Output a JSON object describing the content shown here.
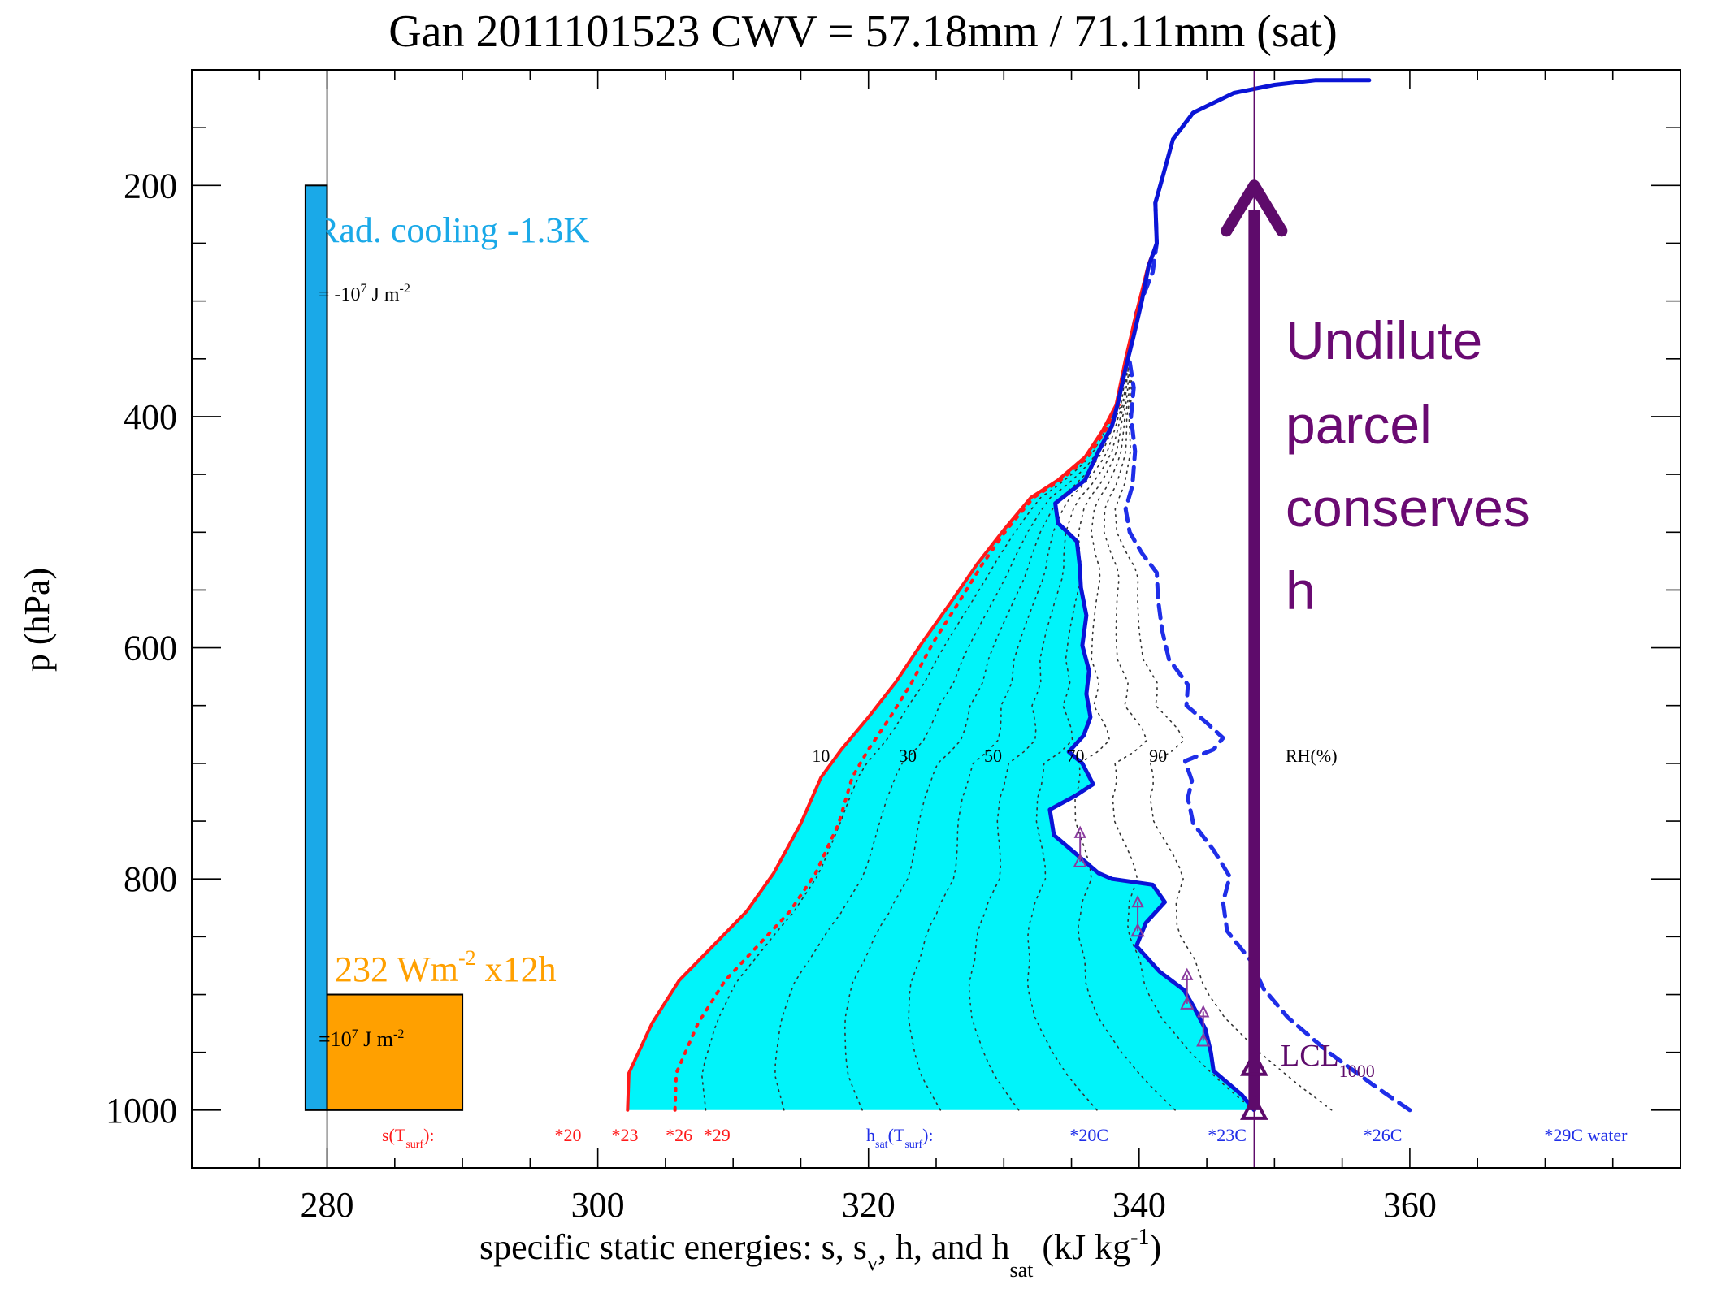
{
  "colors": {
    "s_profile": "#ff1a1a",
    "h_profile": "#0a14d6",
    "hsat_profile": "#1f2ee8",
    "shading": "#00f4fa",
    "rad_cooling": "#1aa9e8",
    "surface_flux": "#ffa000",
    "parcel": "#5e0b6b",
    "rh_lines": "#333333"
  },
  "chart_data": {
    "type": "line",
    "title": "Gan 2011101523  CWV = 57.18mm / 71.11mm (sat)",
    "xlabel": "specific static energies: s, s",
    "xlabel_sub1": "v",
    "xlabel_mid": ", h, and h",
    "xlabel_sub2": "sat",
    "xlabel_unit": " (kJ  kg",
    "xlabel_unit_sup": "-1",
    "xlabel_close": ")",
    "ylabel": "p (hPa)",
    "xlim": [
      270,
      380
    ],
    "ylim": [
      1050,
      100
    ],
    "y_inverted": true,
    "grid": false,
    "x_ticks": [
      280,
      300,
      320,
      340,
      360
    ],
    "y_ticks": [
      200,
      400,
      600,
      800,
      1000
    ],
    "series": [
      {
        "key": "s",
        "style": "solid",
        "points": [
          [
            302.2,
            1000
          ],
          [
            302.3,
            968
          ],
          [
            304,
            925
          ],
          [
            306,
            888
          ],
          [
            308.5,
            858
          ],
          [
            311,
            828
          ],
          [
            313,
            795
          ],
          [
            315,
            752
          ],
          [
            316.5,
            712
          ],
          [
            318,
            688
          ],
          [
            320,
            660
          ],
          [
            322,
            630
          ],
          [
            324,
            595
          ],
          [
            326,
            562
          ],
          [
            328,
            528
          ],
          [
            330,
            498
          ],
          [
            332,
            470
          ],
          [
            334,
            455
          ],
          [
            336,
            435
          ],
          [
            337.3,
            412
          ],
          [
            338.3,
            390
          ],
          [
            339,
            350
          ],
          [
            339.8,
            310
          ],
          [
            340.7,
            268
          ],
          [
            341.3,
            250
          ],
          [
            341.2,
            215
          ],
          [
            341.8,
            190
          ],
          [
            342.5,
            160
          ],
          [
            344,
            137
          ],
          [
            347,
            120
          ],
          [
            350,
            113
          ],
          [
            353,
            109
          ],
          [
            357,
            109
          ]
        ]
      },
      {
        "key": "s_v",
        "style": "dotted",
        "points": [
          [
            305.7,
            1000
          ],
          [
            305.8,
            968
          ],
          [
            307.4,
            925
          ],
          [
            309.4,
            888
          ],
          [
            311.8,
            858
          ],
          [
            314.2,
            828
          ],
          [
            316.1,
            795
          ],
          [
            317.8,
            752
          ],
          [
            318.8,
            712
          ],
          [
            320,
            688
          ],
          [
            321.6,
            660
          ],
          [
            323.2,
            630
          ],
          [
            324.8,
            595
          ],
          [
            326.6,
            562
          ],
          [
            328.4,
            528
          ],
          [
            330.2,
            498
          ],
          [
            332.2,
            470
          ],
          [
            334.2,
            455
          ],
          [
            336.2,
            435
          ],
          [
            337.5,
            412
          ],
          [
            338.5,
            390
          ]
        ]
      },
      {
        "key": "h",
        "style": "solid",
        "points": [
          [
            348.5,
            1000
          ],
          [
            347.6,
            987
          ],
          [
            345.5,
            966
          ],
          [
            345.3,
            950
          ],
          [
            344.9,
            930
          ],
          [
            344,
            910
          ],
          [
            343.3,
            896
          ],
          [
            341.5,
            880
          ],
          [
            339.8,
            858
          ],
          [
            340.5,
            838
          ],
          [
            341.9,
            820
          ],
          [
            341,
            805
          ],
          [
            338,
            800
          ],
          [
            337,
            795
          ],
          [
            335.5,
            780
          ],
          [
            333.7,
            762
          ],
          [
            333.4,
            740
          ],
          [
            335.3,
            728
          ],
          [
            336.6,
            718
          ],
          [
            335.8,
            700
          ],
          [
            334.8,
            690
          ],
          [
            335.9,
            676
          ],
          [
            336.4,
            660
          ],
          [
            336.1,
            640
          ],
          [
            336.3,
            620
          ],
          [
            335.8,
            598
          ],
          [
            336.1,
            572
          ],
          [
            335.7,
            548
          ],
          [
            335.6,
            528
          ],
          [
            335.4,
            508
          ],
          [
            334,
            492
          ],
          [
            333.8,
            475
          ],
          [
            336,
            455
          ],
          [
            337,
            430
          ],
          [
            338,
            408
          ],
          [
            338.5,
            385
          ],
          [
            339,
            358
          ],
          [
            339.6,
            330
          ],
          [
            340.2,
            300
          ],
          [
            340.7,
            270
          ],
          [
            341.3,
            250
          ],
          [
            341.2,
            215
          ],
          [
            341.8,
            190
          ],
          [
            342.5,
            160
          ],
          [
            344,
            137
          ],
          [
            347,
            120
          ],
          [
            350,
            113
          ],
          [
            353,
            109
          ],
          [
            357,
            109
          ]
        ]
      },
      {
        "key": "h_sat",
        "style": "dashed",
        "points": [
          [
            360,
            1000
          ],
          [
            357.5,
            980
          ],
          [
            354,
            950
          ],
          [
            351,
            920
          ],
          [
            349.2,
            895
          ],
          [
            348.2,
            870
          ],
          [
            346.5,
            845
          ],
          [
            346.2,
            820
          ],
          [
            346.7,
            798
          ],
          [
            345.5,
            775
          ],
          [
            344,
            752
          ],
          [
            343.6,
            730
          ],
          [
            343.9,
            715
          ],
          [
            343.4,
            698
          ],
          [
            345.5,
            688
          ],
          [
            346.2,
            678
          ],
          [
            345,
            665
          ],
          [
            343.5,
            650
          ],
          [
            343.6,
            632
          ],
          [
            342.2,
            610
          ],
          [
            341.7,
            585
          ],
          [
            341.4,
            558
          ],
          [
            341.3,
            535
          ],
          [
            340.2,
            518
          ],
          [
            339.3,
            500
          ],
          [
            339,
            480
          ],
          [
            339.5,
            460
          ],
          [
            339.7,
            430
          ],
          [
            339.4,
            400
          ],
          [
            339.6,
            375
          ],
          [
            339.2,
            345
          ],
          [
            339.8,
            310
          ],
          [
            341,
            275
          ],
          [
            341.3,
            250
          ],
          [
            341.2,
            215
          ],
          [
            341.8,
            190
          ]
        ]
      }
    ],
    "rh_lines": {
      "labels": [
        "10",
        "30",
        "50",
        "70",
        "90"
      ],
      "label_x": [
        316.5,
        322.9,
        329.2,
        335.3,
        341.4
      ],
      "label_p": 693,
      "label_suffix": "RH(%)",
      "fractions": [
        0.1,
        0.2,
        0.3,
        0.4,
        0.5,
        0.6,
        0.7,
        0.8,
        0.9
      ]
    },
    "annotations": {
      "rad_cooling": {
        "label": "Rad. cooling -1.3K",
        "energy": "= -10",
        "energy_sup": "7",
        "energy_unit": " J  m",
        "energy_unit_sup": "-2",
        "x_range": [
          278.4,
          280.0
        ],
        "p_range": [
          200,
          1000
        ]
      },
      "surface_flux": {
        "label": "232  Wm",
        "label_sup": "-2",
        "label_suffix": " x12h",
        "energy": "=10",
        "energy_sup": "7",
        "energy_unit": " J  m",
        "energy_unit_sup": "-2",
        "x_range": [
          280.0,
          290.0
        ],
        "p_range": [
          900,
          1000
        ]
      },
      "parcel": {
        "text_lines": [
          "Undilute",
          "parcel",
          "conserves",
          "h"
        ],
        "x": 348.5,
        "p_from": 1000,
        "p_to": 200
      },
      "lcl": {
        "label": "LCL",
        "label_sub": "1000",
        "p": 962
      },
      "s_surface": {
        "label_prefix": "s(T",
        "label_sub": "surf",
        "label_suffix": "):",
        "marks": [
          "*20",
          "*23",
          "*26",
          "*29"
        ],
        "marks_x": [
          297.8,
          302.0,
          306.0,
          308.8
        ]
      },
      "hsat_surface": {
        "label_prefix": "h",
        "label_sub1": "sat",
        "label_mid": "(T",
        "label_sub2": "surf",
        "label_suffix": "):",
        "marks": [
          "*20C",
          "*23C",
          "*26C",
          "*29C water"
        ],
        "marks_x": [
          336.3,
          346.5,
          358.0,
          373.0
        ]
      },
      "parcel_markers_p": [
        785,
        845,
        908,
        940
      ]
    }
  }
}
